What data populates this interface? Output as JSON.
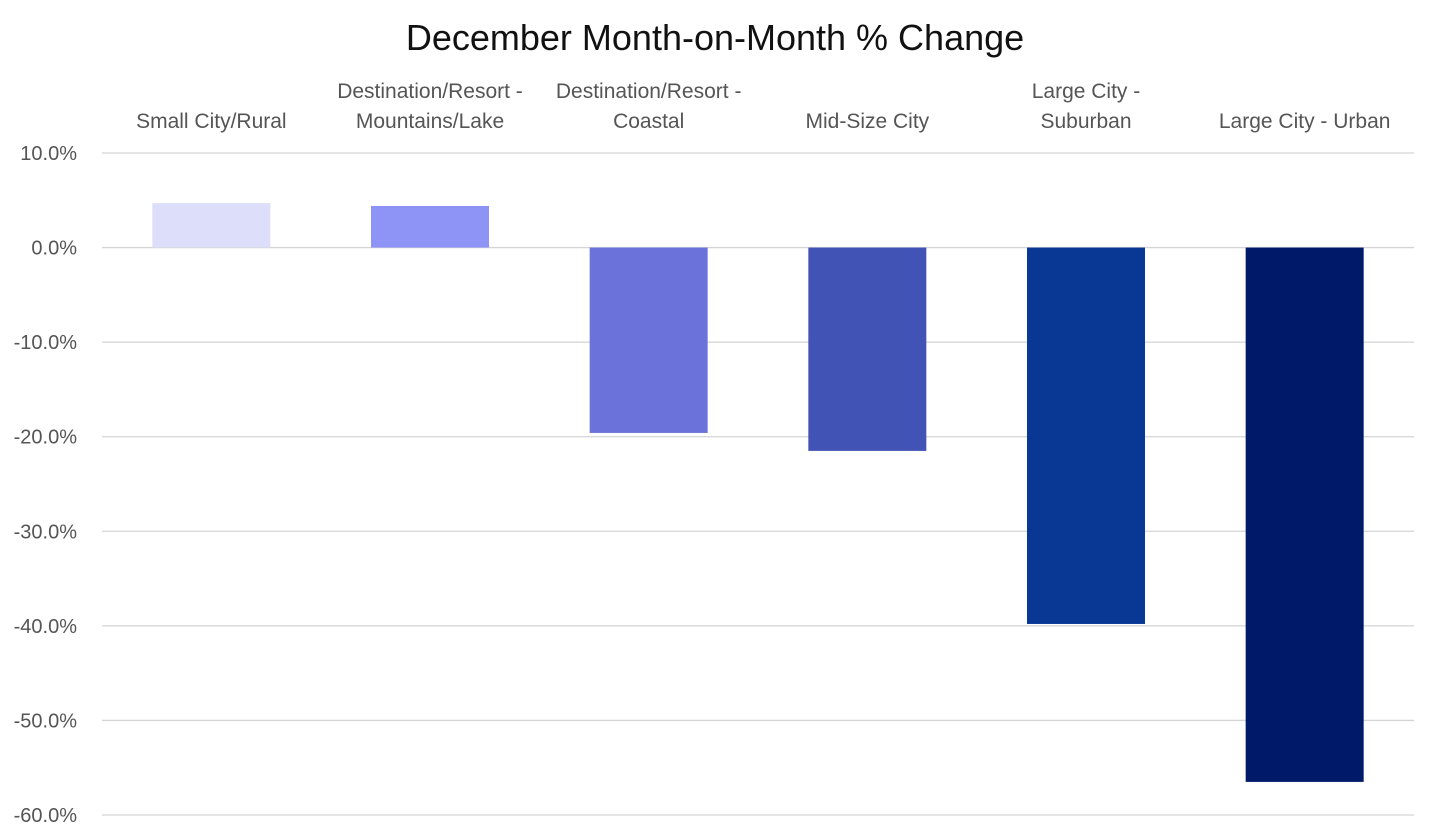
{
  "chart_data": {
    "type": "bar",
    "title": "December Month-on-Month % Change",
    "xlabel": "",
    "ylabel": "",
    "categories": [
      [
        "Small City/Rural"
      ],
      [
        "Destination/Resort -",
        "Mountains/Lake"
      ],
      [
        "Destination/Resort -",
        "Coastal"
      ],
      [
        "Mid-Size City"
      ],
      [
        "Large City -",
        "Suburban"
      ],
      [
        "Large City - Urban"
      ]
    ],
    "values": [
      4.7,
      4.4,
      -19.6,
      -21.5,
      -39.8,
      -56.5
    ],
    "bar_colors": [
      "#dcdefa",
      "#8e93f6",
      "#6b73da",
      "#4253b6",
      "#083794",
      "#001a69"
    ],
    "ylim": [
      -60,
      10
    ],
    "yticks": [
      10,
      0,
      -10,
      -20,
      -30,
      -40,
      -50,
      -60
    ],
    "ytick_labels": [
      "10.0%",
      "0.0%",
      "-10.0%",
      "-20.0%",
      "-30.0%",
      "-40.0%",
      "-50.0%",
      "-60.0%"
    ],
    "grid": true,
    "legend": "none",
    "category_axis_position": "top"
  }
}
